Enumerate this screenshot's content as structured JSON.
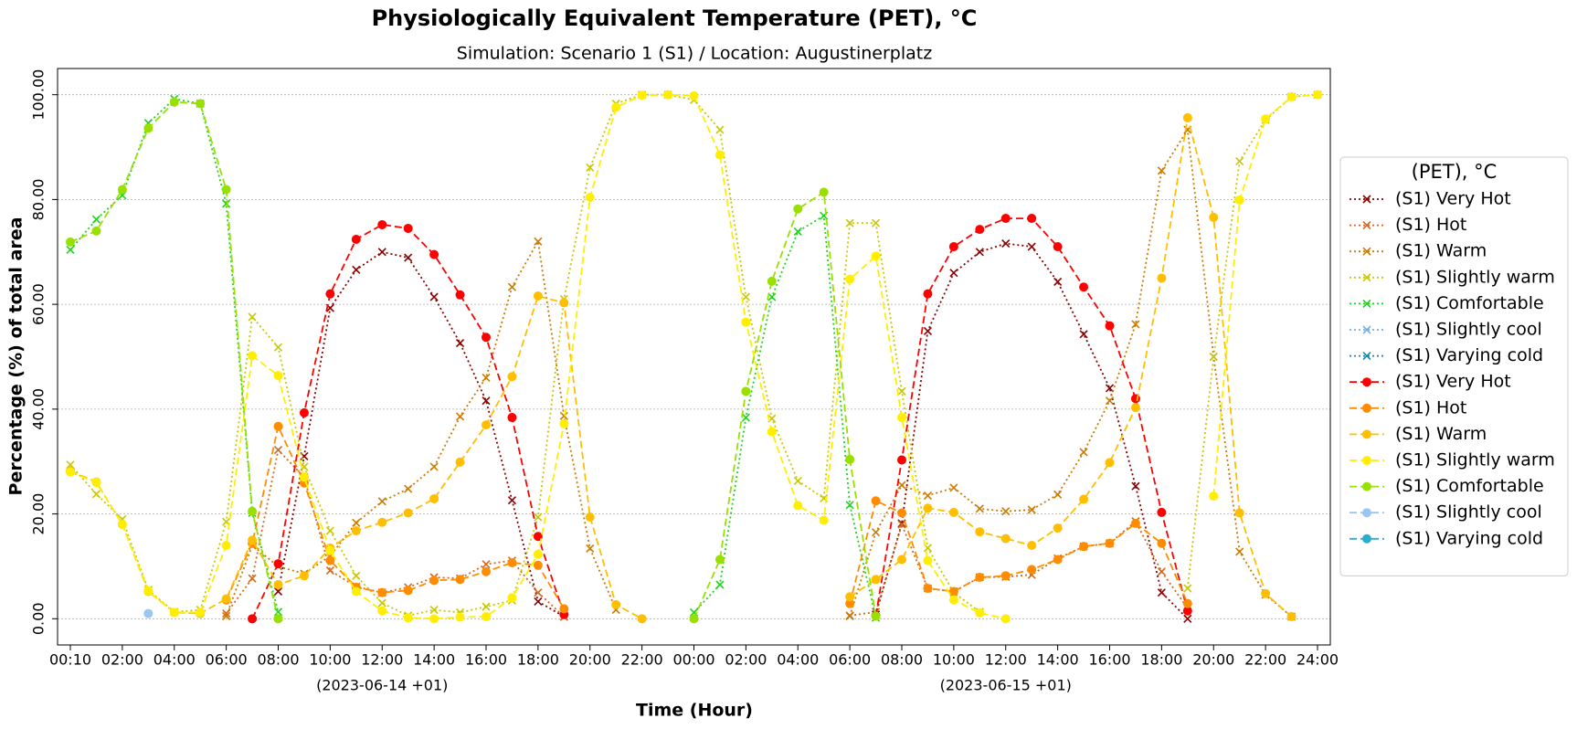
{
  "chart_data": {
    "type": "line",
    "title": "Physiologically Equivalent Temperature (PET), °C",
    "subtitle": "Simulation: Scenario 1 (S1) / Location: Augustinerplatz",
    "x_label": "Time (Hour)",
    "y_label": "Percentage (%) of total area",
    "x_sublabels": [
      "(2023-06-14 +01)",
      "(2023-06-15 +01)"
    ],
    "legend_title": "(PET), °C",
    "legend_position": "right",
    "grid": true,
    "categories": [
      "00:10",
      null,
      "02:00",
      null,
      "04:00",
      null,
      "06:00",
      null,
      "08:00",
      null,
      "10:00",
      null,
      "12:00",
      null,
      "14:00",
      null,
      "16:00",
      null,
      "18:00",
      null,
      "20:00",
      null,
      "22:00",
      null,
      "00:00",
      null,
      "02:00",
      null,
      "04:00",
      null,
      "06:00",
      null,
      "08:00",
      null,
      "10:00",
      null,
      "12:00",
      null,
      "14:00",
      null,
      "16:00",
      null,
      "18:00",
      null,
      "20:00",
      null,
      "22:00",
      null,
      "24:00"
    ],
    "ylim": [
      -5,
      105
    ],
    "yticks": [
      {
        "value": 0,
        "label": "0.00"
      },
      {
        "value": 20,
        "label": "20.00"
      },
      {
        "value": 40,
        "label": "40.00"
      },
      {
        "value": 60,
        "label": "60.00"
      },
      {
        "value": 80,
        "label": "80.00"
      },
      {
        "value": 100,
        "label": "100.00"
      }
    ],
    "series": [
      {
        "name": "(S1) Very Hot",
        "color": "#8b0000",
        "linestyle": "dotted",
        "marker": "x",
        "values": [
          null,
          null,
          null,
          null,
          null,
          null,
          null,
          null,
          5.2,
          31,
          59.3,
          66.6,
          70,
          68.9,
          61.4,
          52.6,
          41.6,
          22.6,
          3.3,
          0.4,
          null,
          null,
          null,
          null,
          null,
          null,
          null,
          null,
          null,
          null,
          null,
          0.8,
          18.2,
          54.9,
          66,
          70,
          71.6,
          71,
          64.3,
          54.3,
          44,
          25.3,
          5,
          0,
          null,
          null,
          null,
          null,
          null
        ]
      },
      {
        "name": "(S1) Hot",
        "color": "#d2691e",
        "linestyle": "dotted",
        "marker": "x",
        "values": [
          null,
          null,
          null,
          null,
          null,
          null,
          1,
          7.7,
          32.2,
          27,
          9.2,
          6.1,
          5,
          6,
          7.9,
          7.7,
          10.4,
          11.1,
          5,
          0.4,
          null,
          null,
          null,
          null,
          null,
          null,
          null,
          null,
          null,
          null,
          0.6,
          1.3,
          18,
          5.8,
          5.2,
          7.9,
          8,
          8.4,
          11.5,
          13.8,
          14.4,
          18.6,
          9,
          2,
          null,
          null,
          null,
          null,
          null
        ]
      },
      {
        "name": "(S1) Warm",
        "color": "#cc7a00",
        "linestyle": "dotted",
        "marker": "x",
        "values": [
          null,
          null,
          null,
          null,
          null,
          null,
          0.5,
          14,
          10,
          8.6,
          12,
          18.3,
          22.4,
          24.8,
          29,
          38.6,
          46,
          63.3,
          72,
          38.7,
          13.4,
          1.7,
          null,
          null,
          null,
          null,
          null,
          null,
          null,
          null,
          0.5,
          16.5,
          25.5,
          23.5,
          25,
          21,
          20.5,
          20.8,
          23.7,
          31.8,
          41.6,
          56.2,
          85.5,
          93.3,
          50,
          12.8,
          4.6,
          0.4,
          null
        ]
      },
      {
        "name": "(S1) Slightly warm",
        "color": "#c8c800",
        "linestyle": "dotted",
        "marker": "x",
        "values": [
          29.4,
          23.8,
          19,
          5.5,
          1.3,
          1.7,
          18.5,
          57.6,
          51.8,
          29,
          16.8,
          8.2,
          3,
          0.6,
          1.7,
          1.2,
          2.3,
          3.5,
          19.4,
          61,
          86.1,
          98.3,
          100,
          100,
          99,
          93.3,
          61.4,
          38.2,
          26.3,
          23,
          75.5,
          75.5,
          43.4,
          13.5,
          5,
          1.3,
          null,
          null,
          null,
          null,
          null,
          null,
          null,
          5.8,
          50,
          87.3,
          95.2,
          99.6,
          100
        ]
      },
      {
        "name": "(S1) Comfortable",
        "color": "#1ed31e",
        "linestyle": "dotted",
        "marker": "x",
        "values": [
          70.4,
          76.2,
          80.8,
          94.6,
          99.2,
          98.3,
          79.2,
          20.2,
          1.3,
          null,
          null,
          null,
          null,
          null,
          null,
          null,
          null,
          null,
          null,
          null,
          null,
          null,
          null,
          null,
          1.2,
          6.5,
          38.4,
          61.4,
          73.9,
          76.9,
          21.7,
          0.2,
          null,
          null,
          null,
          null,
          null,
          null,
          null,
          null,
          null,
          null,
          null,
          null,
          null,
          null,
          null,
          null,
          null
        ]
      },
      {
        "name": "(S1) Slightly cool",
        "color": "#7aaee0",
        "linestyle": "dotted",
        "marker": "x",
        "values": [
          null,
          null,
          null,
          null,
          null,
          null,
          null,
          null,
          null,
          null,
          null,
          null,
          null,
          null,
          null,
          null,
          null,
          null,
          null,
          null,
          null,
          null,
          null,
          null,
          null,
          null,
          null,
          null,
          null,
          null,
          null,
          null,
          null,
          null,
          null,
          null,
          null,
          null,
          null,
          null,
          null,
          null,
          null,
          null,
          null,
          null,
          null,
          null,
          null
        ]
      },
      {
        "name": "(S1) Varying cold",
        "color": "#1a86a8",
        "linestyle": "dotted",
        "marker": "x",
        "values": [
          null,
          null,
          null,
          null,
          null,
          null,
          null,
          null,
          null,
          null,
          null,
          null,
          null,
          null,
          null,
          null,
          null,
          null,
          null,
          null,
          null,
          null,
          null,
          null,
          null,
          null,
          null,
          null,
          null,
          null,
          null,
          null,
          null,
          null,
          null,
          null,
          null,
          null,
          null,
          null,
          null,
          null,
          null,
          null,
          null,
          null,
          null,
          null,
          null
        ]
      },
      {
        "name": "(S1) Very Hot",
        "color": "#ff0000",
        "linestyle": "dashed",
        "marker": "o",
        "values": [
          null,
          null,
          null,
          null,
          null,
          null,
          null,
          0,
          10.5,
          39.3,
          62,
          72.4,
          75.2,
          74.5,
          69.5,
          61.8,
          53.7,
          38.4,
          15.7,
          0.8,
          null,
          null,
          null,
          null,
          null,
          null,
          null,
          null,
          null,
          null,
          null,
          0.6,
          30.3,
          62,
          71,
          74.3,
          76.4,
          76.4,
          71,
          63.3,
          55.9,
          42,
          20.3,
          1.5,
          null,
          null,
          null,
          null,
          null
        ]
      },
      {
        "name": "(S1) Hot",
        "color": "#ff8c00",
        "linestyle": "dashed",
        "marker": "o",
        "values": [
          null,
          null,
          null,
          null,
          null,
          null,
          3.6,
          14.4,
          36.7,
          25.9,
          11.1,
          6,
          5,
          5.4,
          7.3,
          7.5,
          9,
          10.7,
          10.2,
          1.9,
          null,
          null,
          null,
          null,
          null,
          null,
          null,
          null,
          null,
          null,
          2.9,
          22.5,
          20.2,
          5.8,
          5.2,
          7.9,
          8.2,
          9.4,
          11.3,
          13.8,
          14.4,
          18.2,
          14.4,
          2.9,
          null,
          null,
          null,
          null,
          null
        ]
      },
      {
        "name": "(S1) Warm",
        "color": "#ffbf00",
        "linestyle": "dashed",
        "marker": "o",
        "values": [
          28.2,
          26.1,
          18,
          5.2,
          1.2,
          1,
          3.8,
          15,
          6.5,
          8.2,
          13.5,
          16.8,
          18.4,
          20.2,
          22.9,
          29.9,
          37,
          46.2,
          61.6,
          60.3,
          19.4,
          2.7,
          0,
          null,
          null,
          null,
          null,
          null,
          null,
          null,
          4.2,
          7.5,
          11.3,
          21.1,
          20.3,
          16.6,
          15.3,
          14,
          17.3,
          22.8,
          29.8,
          40.3,
          65,
          95.6,
          76.6,
          20.2,
          4.8,
          0.4,
          null
        ]
      },
      {
        "name": "(S1) Slightly warm",
        "color": "#ffee00",
        "linestyle": "dashed",
        "marker": "o",
        "values": [
          28,
          26,
          18,
          5.3,
          1.2,
          1.2,
          14,
          50.2,
          46.4,
          27,
          13,
          5.2,
          1.5,
          0.2,
          0,
          0.3,
          0.4,
          4,
          12.3,
          37.2,
          80.4,
          97.6,
          99.9,
          100,
          99.8,
          88.5,
          56.6,
          35.7,
          21.6,
          18.8,
          64.8,
          69.2,
          38.4,
          11.1,
          3.6,
          1.1,
          0,
          null,
          null,
          null,
          null,
          null,
          null,
          null,
          23.4,
          79.9,
          95.4,
          99.6,
          100
        ]
      },
      {
        "name": "(S1) Comfortable",
        "color": "#99e000",
        "linestyle": "dashed",
        "marker": "o",
        "values": [
          71.9,
          74,
          81.9,
          93.6,
          98.6,
          98.3,
          81.9,
          20.5,
          0,
          null,
          null,
          null,
          null,
          null,
          null,
          null,
          null,
          null,
          null,
          null,
          null,
          null,
          null,
          null,
          0,
          11.3,
          43.4,
          64.4,
          78.2,
          81.4,
          30.4,
          0.5,
          null,
          null,
          null,
          null,
          null,
          null,
          null,
          null,
          null,
          null,
          null,
          null,
          null,
          null,
          null,
          null,
          null
        ]
      },
      {
        "name": "(S1) Slightly cool",
        "color": "#99c6f2",
        "linestyle": "dashed",
        "marker": "o",
        "values": [
          null,
          null,
          null,
          1,
          null,
          null,
          null,
          null,
          null,
          null,
          null,
          null,
          null,
          null,
          null,
          null,
          null,
          null,
          null,
          null,
          null,
          null,
          null,
          null,
          null,
          null,
          null,
          null,
          null,
          null,
          null,
          null,
          null,
          null,
          null,
          null,
          null,
          null,
          null,
          null,
          null,
          null,
          null,
          null,
          null,
          null,
          null,
          null,
          null
        ]
      },
      {
        "name": "(S1) Varying cold",
        "color": "#2aaed0",
        "linestyle": "dashed",
        "marker": "o",
        "values": [
          null,
          null,
          null,
          null,
          null,
          null,
          null,
          null,
          null,
          null,
          null,
          null,
          null,
          null,
          null,
          null,
          null,
          null,
          null,
          null,
          null,
          null,
          null,
          null,
          null,
          null,
          null,
          null,
          null,
          null,
          null,
          null,
          null,
          null,
          null,
          null,
          null,
          null,
          null,
          null,
          null,
          null,
          null,
          null,
          null,
          null,
          null,
          null,
          null
        ]
      }
    ]
  }
}
